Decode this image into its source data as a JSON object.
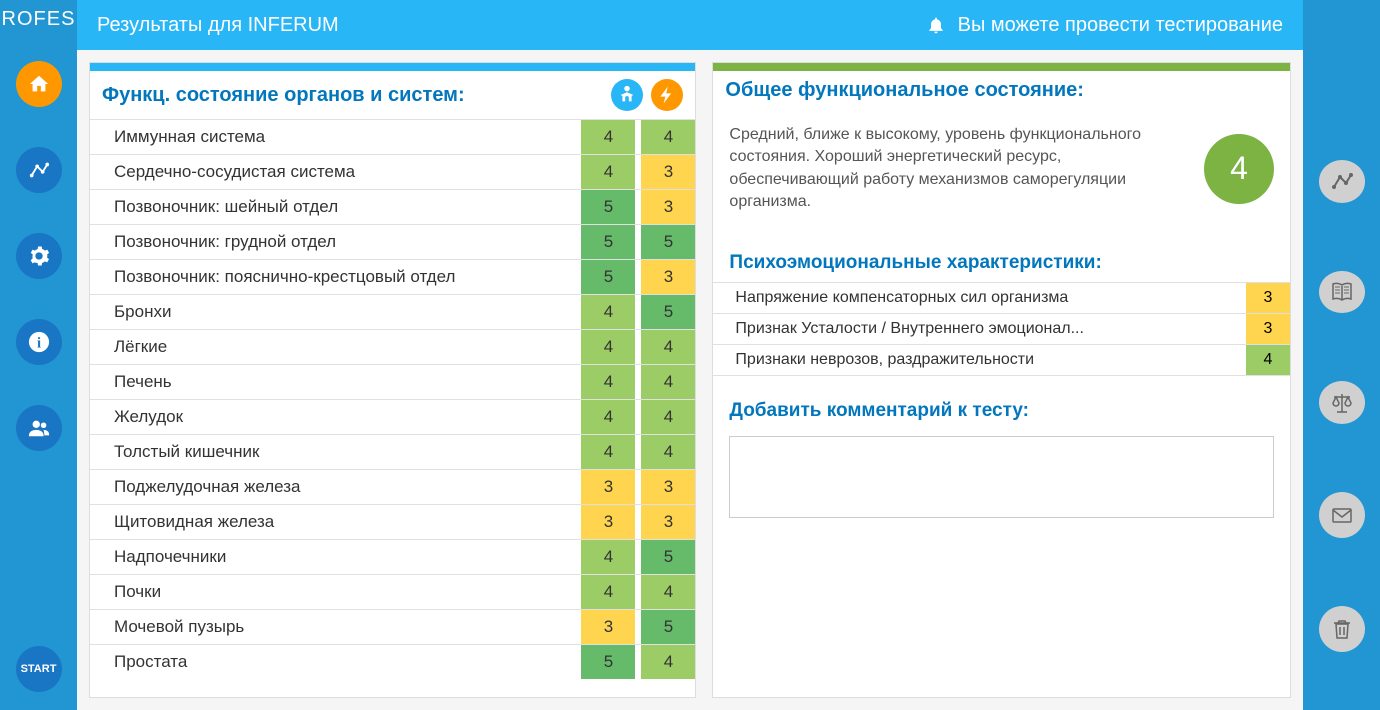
{
  "logo": "ROFES",
  "topbar": {
    "title": "Результаты для INFERUM",
    "notification": "Вы можете провести тестирование"
  },
  "leftNav": {
    "start_label": "START"
  },
  "organs": {
    "title": "Функц. состояние органов и систем:",
    "rows": [
      {
        "label": "Иммунная система",
        "a": 4,
        "b": 4
      },
      {
        "label": "Сердечно-сосудистая система",
        "a": 4,
        "b": 3
      },
      {
        "label": "Позвоночник: шейный отдел",
        "a": 5,
        "b": 3
      },
      {
        "label": "Позвоночник: грудной отдел",
        "a": 5,
        "b": 5
      },
      {
        "label": "Позвоночник: пояснично-крестцовый отдел",
        "a": 5,
        "b": 3
      },
      {
        "label": "Бронхи",
        "a": 4,
        "b": 5
      },
      {
        "label": "Лёгкие",
        "a": 4,
        "b": 4
      },
      {
        "label": "Печень",
        "a": 4,
        "b": 4
      },
      {
        "label": "Желудок",
        "a": 4,
        "b": 4
      },
      {
        "label": "Толстый кишечник",
        "a": 4,
        "b": 4
      },
      {
        "label": "Поджелудочная железа",
        "a": 3,
        "b": 3
      },
      {
        "label": "Щитовидная железа",
        "a": 3,
        "b": 3
      },
      {
        "label": "Надпочечники",
        "a": 4,
        "b": 5
      },
      {
        "label": "Почки",
        "a": 4,
        "b": 4
      },
      {
        "label": "Мочевой пузырь",
        "a": 3,
        "b": 5
      },
      {
        "label": "Простата",
        "a": 5,
        "b": 4
      }
    ]
  },
  "overall": {
    "title": "Общее функциональное состояние:",
    "text": "Средний, ближе к высокому, уровень функционального состояния. Хороший энергетический ресурс, обеспечивающий работу механизмов саморегуляции организма.",
    "score": 4
  },
  "psycho": {
    "title": "Психоэмоциональные характеристики:",
    "rows": [
      {
        "label": "Напряжение компенсаторных сил организма",
        "v": 3
      },
      {
        "label": "Признак Усталости / Внутреннего эмоционал...",
        "v": 3
      },
      {
        "label": "Признаки неврозов, раздражительности",
        "v": 4
      }
    ]
  },
  "comment": {
    "title": "Добавить комментарий к тесту:",
    "value": ""
  },
  "colors": {
    "3": "#ffd54f",
    "4": "#9ccc65",
    "5": "#66bb6a"
  }
}
